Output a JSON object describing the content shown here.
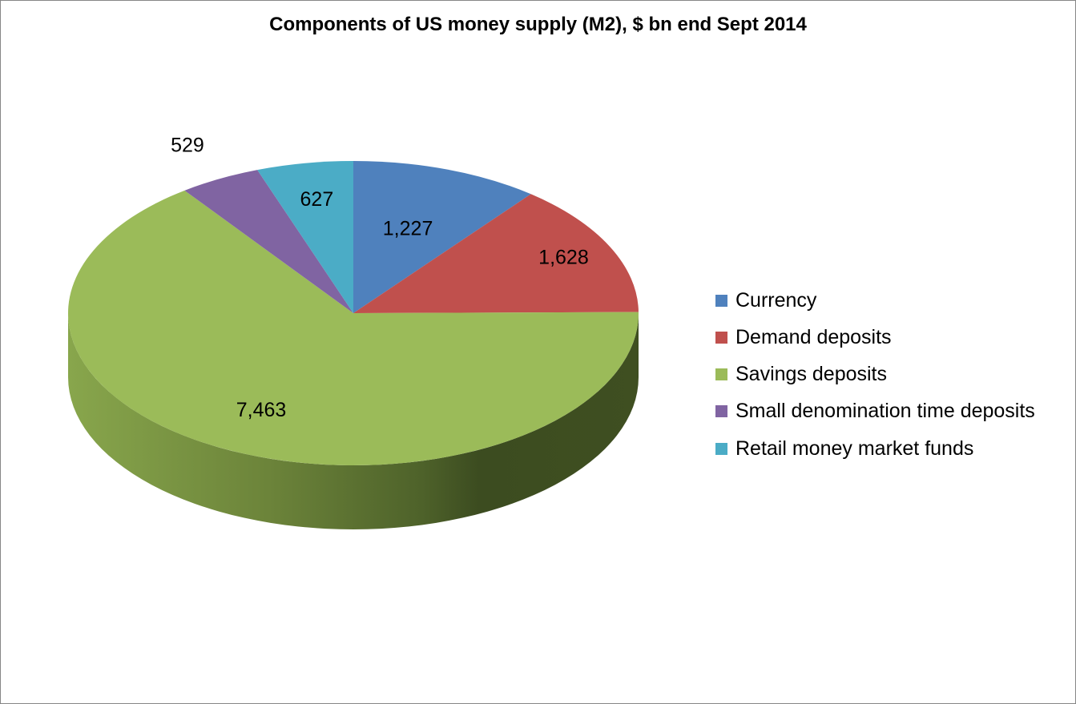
{
  "chart_data": {
    "type": "pie",
    "title": "Components of US money supply (M2), $ bn end Sept 2014",
    "categories": [
      "Currency",
      "Demand deposits",
      "Savings deposits",
      "Small denomination time deposits",
      "Retail money market funds"
    ],
    "values": [
      1227,
      1628,
      7463,
      529,
      627
    ],
    "data_labels": [
      "1,227",
      "1,628",
      "7,463",
      "529",
      "627"
    ],
    "colors": [
      "#4F81BD",
      "#C0504D",
      "#9BBB59",
      "#8064A2",
      "#4BACC6"
    ],
    "legend_position": "right",
    "three_d": true
  }
}
